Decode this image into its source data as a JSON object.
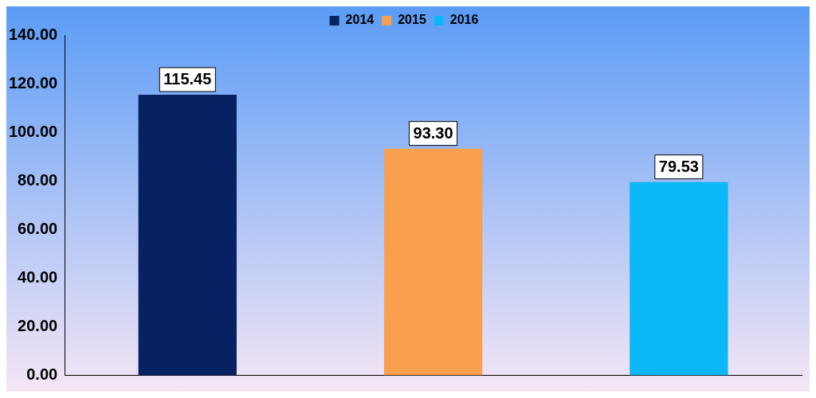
{
  "chart_data": {
    "type": "bar",
    "categories": [
      null,
      null,
      null
    ],
    "series": [
      {
        "name": "2014",
        "color": "#062262",
        "values": [
          115.45,
          null,
          null
        ],
        "value_labels": [
          "115.45",
          null,
          null
        ]
      },
      {
        "name": "2015",
        "color": "#f9a04e",
        "values": [
          null,
          93.3,
          null
        ],
        "value_labels": [
          null,
          "93.30",
          null
        ]
      },
      {
        "name": "2016",
        "color": "#0ab8f8",
        "values": [
          null,
          null,
          79.53
        ],
        "value_labels": [
          null,
          null,
          "79.53"
        ]
      }
    ],
    "ylim": [
      0,
      140
    ],
    "yticks": [
      {
        "value": 0,
        "label": "0.00"
      },
      {
        "value": 20,
        "label": "20.00"
      },
      {
        "value": 40,
        "label": "40.00"
      },
      {
        "value": 60,
        "label": "60.00"
      },
      {
        "value": 80,
        "label": "80.00"
      },
      {
        "value": 100,
        "label": "100.00"
      },
      {
        "value": 120,
        "label": "120.00"
      },
      {
        "value": 140,
        "label": "140.00"
      }
    ],
    "grid": false,
    "legend": "top"
  }
}
